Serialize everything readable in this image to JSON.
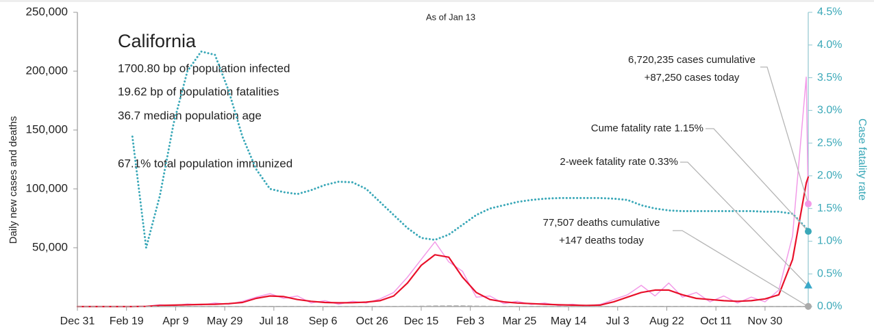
{
  "chart_data": {
    "type": "line",
    "subtitle": "As of Jan 13",
    "title": "California",
    "info": [
      "1700.80 bp of population infected",
      "19.62 bp of population fatalities",
      "36.7 median population age",
      "67.1% total population immunized"
    ],
    "ylabel": "Daily new cases and deaths",
    "y2label": "Case fatality rate",
    "annotations": [
      "6,720,235 cases cumulative",
      "+87,250 cases today",
      "Cume fatality rate 1.15%",
      "2-week fatality rate 0.33%",
      "77,507 deaths cumulative",
      "+147 deaths today"
    ],
    "two_week_fatality_rate": 0.33,
    "two_week_color": "#3aa8c8",
    "x": [
      0,
      14,
      28,
      42,
      56,
      70,
      84,
      98,
      112,
      126,
      140,
      154,
      168,
      182,
      196,
      210,
      224,
      238,
      252,
      266,
      280,
      294,
      308,
      322,
      336,
      350,
      364,
      378,
      392,
      406,
      420,
      434,
      448,
      462,
      476,
      490,
      504,
      518,
      532,
      546,
      560,
      574,
      588,
      602,
      616,
      630,
      644,
      658,
      672,
      686,
      700,
      714,
      728,
      742,
      744
    ],
    "xlim": [
      0,
      744
    ],
    "xticks": [
      {
        "value": 0,
        "label": "Dec 31"
      },
      {
        "value": 50,
        "label": "Feb 19"
      },
      {
        "value": 100,
        "label": "Apr 9"
      },
      {
        "value": 150,
        "label": "May 29"
      },
      {
        "value": 200,
        "label": "Jul 18"
      },
      {
        "value": 250,
        "label": "Sep 6"
      },
      {
        "value": 300,
        "label": "Oct 26"
      },
      {
        "value": 350,
        "label": "Dec 15"
      },
      {
        "value": 400,
        "label": "Feb 3"
      },
      {
        "value": 450,
        "label": "Mar 25"
      },
      {
        "value": 500,
        "label": "May 14"
      },
      {
        "value": 550,
        "label": "Jul 3"
      },
      {
        "value": 600,
        "label": "Aug 22"
      },
      {
        "value": 650,
        "label": "Oct 11"
      },
      {
        "value": 700,
        "label": "Nov 30"
      }
    ],
    "ylim": [
      0,
      250000
    ],
    "yticks": [
      {
        "value": 50000,
        "label": "50,000"
      },
      {
        "value": 100000,
        "label": "100,000"
      },
      {
        "value": 150000,
        "label": "150,000"
      },
      {
        "value": 200000,
        "label": "200,000"
      },
      {
        "value": 250000,
        "label": "250,000"
      }
    ],
    "y2lim": [
      0,
      4.5
    ],
    "y2ticks": [
      {
        "value": 0,
        "label": "0.0%"
      },
      {
        "value": 0.5,
        "label": "0.5%"
      },
      {
        "value": 1,
        "label": "1.0%"
      },
      {
        "value": 1.5,
        "label": "1.5%"
      },
      {
        "value": 2,
        "label": "2.0%"
      },
      {
        "value": 2.5,
        "label": "2.5%"
      },
      {
        "value": 3,
        "label": "3.0%"
      },
      {
        "value": 3.5,
        "label": "3.5%"
      },
      {
        "value": 4,
        "label": "4.0%"
      },
      {
        "value": 4.5,
        "label": "4.5%"
      }
    ],
    "series": [
      {
        "color": "#f29ae8",
        "line_style": "solid",
        "end_marker": "circle",
        "values": [
          0,
          0,
          0,
          0,
          0,
          300,
          1500,
          900,
          2200,
          1400,
          3000,
          2000,
          4500,
          8000,
          11000,
          7000,
          9000,
          3000,
          5000,
          2000,
          4500,
          3000,
          6500,
          12000,
          25000,
          40000,
          55000,
          38000,
          30000,
          8000,
          9000,
          2500,
          4500,
          1800,
          3000,
          900,
          2000,
          600,
          1800,
          6000,
          10000,
          18000,
          9000,
          20000,
          8000,
          12000,
          4000,
          9000,
          3000,
          8000,
          4000,
          14000,
          60000,
          195000,
          87250
        ]
      },
      {
        "color": "#e8102a",
        "line_style": "solid",
        "values": [
          0,
          0,
          0,
          0,
          0,
          200,
          1000,
          1200,
          1500,
          1800,
          2000,
          2500,
          3500,
          7000,
          9000,
          8500,
          6000,
          4500,
          3500,
          3200,
          3300,
          3800,
          5000,
          9000,
          20000,
          35000,
          44000,
          42000,
          25000,
          12000,
          6000,
          4000,
          3000,
          2500,
          2000,
          1500,
          1200,
          1000,
          1200,
          4000,
          8000,
          12000,
          14000,
          14000,
          10000,
          7000,
          6000,
          5000,
          4500,
          5000,
          6500,
          10000,
          40000,
          105000,
          110000
        ]
      },
      {
        "color": "#aaaaaa",
        "line_style": "dashed",
        "end_marker": "circle",
        "values": [
          0,
          0,
          0,
          0,
          0,
          10,
          60,
          80,
          90,
          80,
          70,
          70,
          60,
          90,
          130,
          140,
          130,
          100,
          80,
          60,
          50,
          50,
          60,
          90,
          150,
          250,
          450,
          550,
          500,
          350,
          200,
          100,
          70,
          50,
          40,
          30,
          25,
          20,
          20,
          40,
          80,
          100,
          110,
          110,
          100,
          80,
          60,
          60,
          50,
          50,
          50,
          60,
          80,
          120,
          147
        ]
      },
      {
        "color": "#3aa8b8",
        "line_style": "dotted",
        "axis": "y2",
        "end_marker": "circle",
        "values": [
          null,
          null,
          null,
          null,
          2.6,
          0.9,
          1.7,
          2.8,
          3.6,
          3.9,
          3.85,
          3.3,
          2.6,
          2.1,
          1.8,
          1.75,
          1.72,
          1.78,
          1.86,
          1.91,
          1.9,
          1.8,
          1.6,
          1.4,
          1.2,
          1.05,
          1.02,
          1.1,
          1.25,
          1.4,
          1.5,
          1.55,
          1.6,
          1.63,
          1.65,
          1.66,
          1.66,
          1.66,
          1.66,
          1.65,
          1.63,
          1.55,
          1.5,
          1.47,
          1.46,
          1.46,
          1.46,
          1.46,
          1.46,
          1.46,
          1.45,
          1.45,
          1.42,
          1.2,
          1.15
        ]
      }
    ]
  }
}
